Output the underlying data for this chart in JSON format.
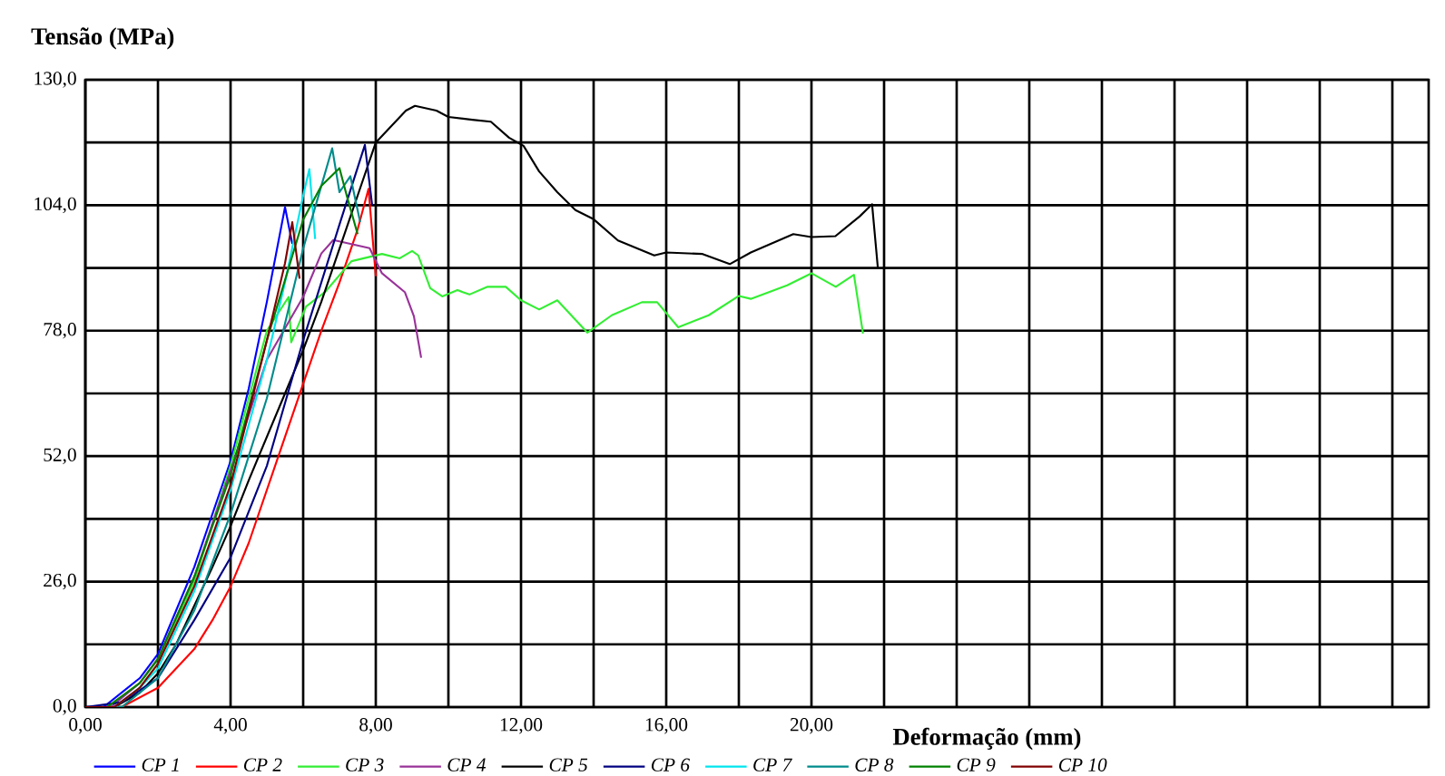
{
  "chart_data": {
    "type": "line",
    "xlabel": "Deformação (mm)",
    "ylabel": "Tensão (MPa)",
    "xlim": [
      0,
      37
    ],
    "ylim": [
      0,
      130
    ],
    "xticks": [
      {
        "value": 0,
        "label": "0,00"
      },
      {
        "value": 2,
        "label": null
      },
      {
        "value": 4,
        "label": "4,00"
      },
      {
        "value": 6,
        "label": null
      },
      {
        "value": 8,
        "label": "8,00"
      },
      {
        "value": 10,
        "label": null
      },
      {
        "value": 12,
        "label": "12,00"
      },
      {
        "value": 14,
        "label": null
      },
      {
        "value": 16,
        "label": "16,00"
      },
      {
        "value": 18,
        "label": null
      },
      {
        "value": 20,
        "label": "20,00"
      },
      {
        "value": 22,
        "label": null
      },
      {
        "value": 24,
        "label": null
      },
      {
        "value": 26,
        "label": null
      },
      {
        "value": 28,
        "label": null
      },
      {
        "value": 30,
        "label": null
      },
      {
        "value": 32,
        "label": null
      },
      {
        "value": 34,
        "label": null
      },
      {
        "value": 36,
        "label": null
      }
    ],
    "yticks": [
      {
        "value": 0,
        "label": "0,0"
      },
      {
        "value": 13,
        "label": null
      },
      {
        "value": 26,
        "label": "26,0"
      },
      {
        "value": 39,
        "label": null
      },
      {
        "value": 52,
        "label": "52,0"
      },
      {
        "value": 65,
        "label": null
      },
      {
        "value": 78,
        "label": "78,0"
      },
      {
        "value": 91,
        "label": null
      },
      {
        "value": 104,
        "label": "104,0"
      },
      {
        "value": 117,
        "label": null
      },
      {
        "value": 130,
        "label": "130,0"
      }
    ],
    "grid": true,
    "legend": "bottom",
    "series": [
      {
        "name": "CP 1",
        "color": "#0000ff",
        "x": [
          0,
          0.5,
          1,
          1.5,
          2,
          2.5,
          3,
          3.5,
          4,
          4.5,
          5,
          5.5,
          5.7
        ],
        "values": [
          0,
          0,
          3,
          6,
          11,
          20,
          29,
          40,
          51,
          66,
          84,
          103.6,
          96
        ]
      },
      {
        "name": "CP 2",
        "color": "#ff0000",
        "x": [
          0,
          1,
          2,
          3,
          3.5,
          4,
          4.5,
          5,
          5.5,
          6,
          6.5,
          7,
          7.5,
          7.8,
          8.0
        ],
        "values": [
          0,
          0,
          4,
          12,
          18,
          25,
          34,
          45,
          56,
          67,
          78,
          88,
          99,
          107.4,
          89.3
        ]
      },
      {
        "name": "CP 3",
        "color": "#33ee33",
        "x": [
          1.2,
          1.5,
          2,
          3,
          4,
          5,
          5.6,
          5.67,
          6.08,
          6.6,
          7.33,
          8.17,
          8.66,
          9.0,
          9.17,
          9.5,
          9.83,
          10.25,
          10.58,
          11.08,
          11.58,
          12.0,
          12.5,
          13.0,
          13.83,
          14.5,
          15.33,
          15.75,
          16.33,
          17.17,
          18.0,
          18.33,
          19.33,
          20.0,
          20.67,
          21.17,
          21.42
        ],
        "values": [
          2,
          4,
          9,
          26,
          50,
          78,
          85,
          75.6,
          83,
          86,
          92.4,
          93.9,
          93,
          94.5,
          93.6,
          86.8,
          85.1,
          86.4,
          85.5,
          87.1,
          87.1,
          84.3,
          82.4,
          84.3,
          77.6,
          81.2,
          83.9,
          83.9,
          78.7,
          81.2,
          85.2,
          84.6,
          87.4,
          89.9,
          87.1,
          89.6,
          77.4
        ]
      },
      {
        "name": "CP 4",
        "color": "#993399",
        "x": [
          0,
          0.7,
          1.5,
          2,
          3,
          4,
          5,
          6,
          6.5,
          6.83,
          7.83,
          8.17,
          8.8,
          9.05,
          9.25
        ],
        "values": [
          0,
          0,
          5,
          10,
          27,
          49,
          72,
          85,
          94,
          96.8,
          95.1,
          89.9,
          86,
          81,
          72.4
        ]
      },
      {
        "name": "CP 5",
        "color": "#000000",
        "x": [
          0,
          0.8,
          1.5,
          2,
          2.5,
          3,
          3.5,
          4,
          4.5,
          5,
          5.5,
          6,
          6.5,
          7,
          7.5,
          8.0,
          8.83,
          9.08,
          9.67,
          10.0,
          10.66,
          11.17,
          11.67,
          12.07,
          12.5,
          13.0,
          13.5,
          14.0,
          14.67,
          15.67,
          16.0,
          17.0,
          17.75,
          18.33,
          19.5,
          20.0,
          20.66,
          21.33,
          21.67,
          21.83
        ],
        "values": [
          0,
          0,
          3,
          7,
          13,
          21,
          29,
          37.5,
          47,
          56,
          65,
          74,
          84,
          95,
          106,
          117,
          123.6,
          124.6,
          123.6,
          122.3,
          121.7,
          121.3,
          118,
          116.3,
          111,
          106.7,
          103,
          101.1,
          96.7,
          93.6,
          94.2,
          93.9,
          91.8,
          94.2,
          98,
          97.4,
          97.6,
          101.7,
          104.2,
          90.9
        ]
      },
      {
        "name": "CP 6",
        "color": "#000080",
        "x": [
          0,
          1,
          2,
          3,
          4,
          5,
          6,
          7,
          7.7,
          7.9
        ],
        "values": [
          0,
          1,
          6,
          18,
          31,
          50,
          76,
          100,
          116.5,
          104
        ]
      },
      {
        "name": "CP 7",
        "color": "#00e5ee",
        "x": [
          0,
          0.8,
          1.5,
          2,
          3,
          4,
          5,
          5.5,
          6.0,
          6.17,
          6.33
        ],
        "values": [
          0,
          0,
          4,
          8,
          24,
          45,
          72,
          88,
          106,
          111.5,
          97
        ]
      },
      {
        "name": "CP 8",
        "color": "#008b8b",
        "x": [
          0,
          1,
          2,
          3,
          4,
          5,
          6,
          6.5,
          6.8,
          7.0,
          7.3,
          7.57
        ],
        "values": [
          0,
          0,
          6,
          20,
          40,
          64,
          95,
          108,
          115.8,
          106.7,
          110,
          100.5
        ]
      },
      {
        "name": "CP 9",
        "color": "#008000",
        "x": [
          0,
          0.6,
          1.5,
          2,
          3,
          4,
          5,
          6,
          6.5,
          7,
          7.2,
          7.5
        ],
        "values": [
          0,
          0,
          5,
          10,
          27,
          48,
          76,
          101,
          108,
          111.7,
          106,
          98
        ]
      },
      {
        "name": "CP 10",
        "color": "#800000",
        "x": [
          0,
          0.8,
          1.5,
          2,
          3,
          4,
          5,
          5.5,
          5.7,
          5.9
        ],
        "values": [
          0,
          0,
          4,
          9,
          25,
          46,
          76,
          92,
          100.5,
          88.8
        ]
      }
    ]
  }
}
